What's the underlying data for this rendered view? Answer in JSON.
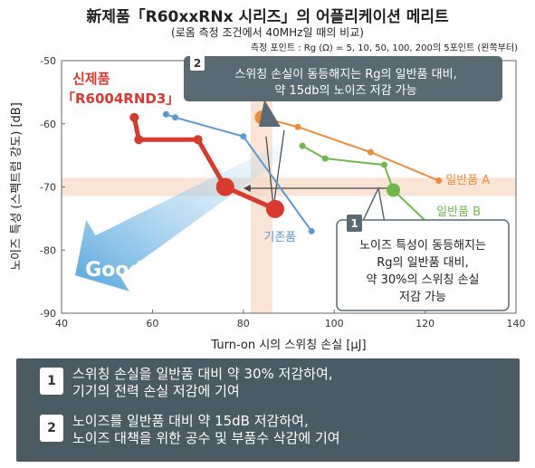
{
  "header": {
    "title": "新제품「R60xxRNx 시리즈」의 어플리케이션 메리트",
    "subtitle": "(로옴 측정 조건에서 40MHz일 때의 비교)"
  },
  "chart_data": {
    "type": "scatter",
    "xlabel": "Turn-on 시의 스위칭 손실  [μJ]",
    "ylabel": "노이즈 특성 (스펙트럼 강도) [dB]",
    "xlim": [
      40,
      140
    ],
    "ylim": [
      -90,
      -50
    ],
    "xticks": [
      40,
      60,
      80,
      100,
      120,
      140
    ],
    "yticks": [
      -50,
      -60,
      -70,
      -80,
      -90
    ],
    "measure_note": "측정 포인트 : Rg (Ω) = 5, 10, 50, 100, 200의 5포인트 (왼쪽부터)",
    "series": [
      {
        "name": "신제품\n「R6004RND3」",
        "color": "#d83a2e",
        "x": [
          56,
          57,
          70,
          76,
          87
        ],
        "y": [
          -59,
          -62.5,
          -62.5,
          -70,
          -73.5
        ],
        "highlight_index": [
          3,
          4
        ]
      },
      {
        "name": "기존품",
        "color": "#5b9bd1",
        "x": [
          63,
          65,
          80,
          95
        ],
        "y": [
          -58.5,
          -59,
          -62,
          -77
        ]
      },
      {
        "name": "일반품 A",
        "color": "#ef8c3a",
        "x": [
          84,
          92,
          108,
          123
        ],
        "y": [
          -59,
          -60.5,
          -64.5,
          -69
        ],
        "highlight_index": [
          0
        ]
      },
      {
        "name": "일반품 B",
        "color": "#6fba4a",
        "x": [
          93,
          98,
          111,
          113,
          121
        ],
        "y": [
          -63.5,
          -65.5,
          -66.5,
          -70.5,
          -76
        ],
        "highlight_index": [
          3
        ]
      }
    ],
    "good_label": "Good",
    "callouts": [
      {
        "num": "2",
        "lines": [
          "스위칭 손실이 동등해지는 Rg의 일반품 대비,",
          "약 15db의 노이즈 저감 가능"
        ]
      },
      {
        "num": "1",
        "lines": [
          "노이즈 특성이 동등해지는",
          "Rg의 일반품 대비,",
          "약 30%의 스위칭 손실",
          "저감 가능"
        ]
      }
    ]
  },
  "notes": [
    {
      "num": "1",
      "lines": [
        "스위칭 손실을 일반품 대비 약 30% 저감하여,",
        "기기의 전력 손실 저감에 기여"
      ]
    },
    {
      "num": "2",
      "lines": [
        "노이즈를 일반품 대비 약 15dB 저감하여,",
        "노이즈 대책을 위한 공수 및 부품수 삭감에 기여"
      ]
    }
  ]
}
